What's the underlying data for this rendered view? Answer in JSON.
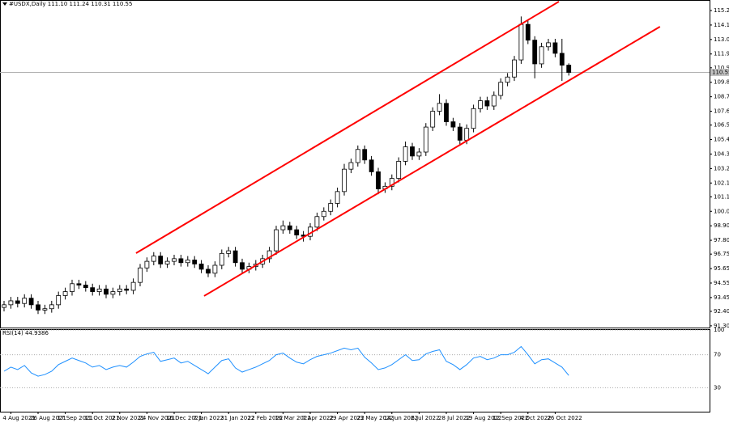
{
  "chart_data": [
    {
      "type": "candlestick",
      "title": "#USDX,Daily 111.10 111.24 110.31 110.55",
      "categories": [
        null,
        "4 Aug 2021",
        null,
        null,
        null,
        "26 Aug 2021",
        null,
        null,
        null,
        "17 Sep 2021",
        null,
        null,
        null,
        "11 Oct 2021",
        null,
        null,
        null,
        "2 Nov 2021",
        null,
        null,
        null,
        "24 Nov 2021",
        null,
        null,
        null,
        "16 Dec 2021",
        null,
        null,
        null,
        "7 Jan 2022",
        null,
        null,
        null,
        "31 Jan 2022",
        null,
        null,
        null,
        "22 Feb 2022",
        null,
        null,
        null,
        "16 Mar 2022",
        null,
        null,
        null,
        "7 Apr 2022",
        null,
        null,
        null,
        "29 Apr 2022",
        null,
        null,
        null,
        "23 May 2022",
        null,
        null,
        null,
        "14 Jun 2022",
        null,
        null,
        null,
        "6 Jul 2022",
        null,
        null,
        null,
        "28 Jul 2022",
        null,
        null,
        null,
        "19 Aug 2022",
        null,
        null,
        null,
        "12 Sep 2022",
        null,
        null,
        null,
        "4 Oct 2022",
        null,
        null,
        null,
        "26 Oct 2022",
        null,
        null
      ],
      "open": [
        92.7,
        92.9,
        93.2,
        93.0,
        93.4,
        92.9,
        92.5,
        92.6,
        92.9,
        93.6,
        93.9,
        94.5,
        94.4,
        94.2,
        93.9,
        94.1,
        93.7,
        93.9,
        94.1,
        94.0,
        94.6,
        95.7,
        96.2,
        96.6,
        96.0,
        96.2,
        96.4,
        96.1,
        96.3,
        96.0,
        95.6,
        95.3,
        95.9,
        96.8,
        97.0,
        96.1,
        95.6,
        95.8,
        96.0,
        96.4,
        97.0,
        98.6,
        98.9,
        98.6,
        98.2,
        98.1,
        98.8,
        99.6,
        100.0,
        100.6,
        101.5,
        103.2,
        103.7,
        104.7,
        103.9,
        103.0,
        101.7,
        101.9,
        102.5,
        103.8,
        104.9,
        104.2,
        104.5,
        106.4,
        107.6,
        108.2,
        106.8,
        106.4,
        105.4,
        106.3,
        107.8,
        108.4,
        108.0,
        108.8,
        109.8,
        110.2,
        111.5,
        114.2,
        113.0,
        111.2,
        112.5,
        112.8,
        112.0,
        111.1
      ],
      "high": [
        93.2,
        93.5,
        93.5,
        93.7,
        93.7,
        93.2,
        92.9,
        93.2,
        93.9,
        94.2,
        94.8,
        94.8,
        94.7,
        94.5,
        94.4,
        94.4,
        94.2,
        94.4,
        94.4,
        94.9,
        96.0,
        96.5,
        96.9,
        96.9,
        96.5,
        96.7,
        96.7,
        96.6,
        96.6,
        96.3,
        95.9,
        96.2,
        97.1,
        97.3,
        97.3,
        96.4,
        96.1,
        96.3,
        96.7,
        97.3,
        98.9,
        99.3,
        99.2,
        98.9,
        98.5,
        99.1,
        99.9,
        100.3,
        100.9,
        101.8,
        103.6,
        104.0,
        105.0,
        105.0,
        104.2,
        103.3,
        102.2,
        102.8,
        104.1,
        105.3,
        105.2,
        104.8,
        106.7,
        107.9,
        108.9,
        108.5,
        107.1,
        106.7,
        106.6,
        108.1,
        108.7,
        108.7,
        109.1,
        110.1,
        110.5,
        111.8,
        114.8,
        114.5,
        113.3,
        112.8,
        113.1,
        113.1,
        113.1,
        111.24
      ],
      "low": [
        92.4,
        92.6,
        92.7,
        92.7,
        92.6,
        92.2,
        92.2,
        92.3,
        92.6,
        93.3,
        93.6,
        94.1,
        93.9,
        93.6,
        93.6,
        93.4,
        93.4,
        93.6,
        93.7,
        93.7,
        94.3,
        95.4,
        95.9,
        95.7,
        95.7,
        95.9,
        95.8,
        95.8,
        95.7,
        95.3,
        95.0,
        95.0,
        95.6,
        96.5,
        95.8,
        95.3,
        95.3,
        95.5,
        95.7,
        96.1,
        96.7,
        98.3,
        98.3,
        97.9,
        97.7,
        97.8,
        98.5,
        99.3,
        99.7,
        100.3,
        101.2,
        102.9,
        103.4,
        103.6,
        102.7,
        101.3,
        101.4,
        101.6,
        102.2,
        103.5,
        103.9,
        103.9,
        104.2,
        106.1,
        107.3,
        106.5,
        106.1,
        105.0,
        105.1,
        106.0,
        107.5,
        107.7,
        107.7,
        108.5,
        109.5,
        109.9,
        111.2,
        112.7,
        110.1,
        110.9,
        112.2,
        111.7,
        109.9,
        110.31
      ],
      "close": [
        92.9,
        93.2,
        93.0,
        93.4,
        92.9,
        92.5,
        92.6,
        92.9,
        93.6,
        93.9,
        94.5,
        94.4,
        94.2,
        93.9,
        94.1,
        93.7,
        93.9,
        94.1,
        94.0,
        94.6,
        95.7,
        96.2,
        96.6,
        96.0,
        96.2,
        96.4,
        96.1,
        96.3,
        96.0,
        95.6,
        95.3,
        95.9,
        96.8,
        97.0,
        96.1,
        95.6,
        95.8,
        96.0,
        96.4,
        97.0,
        98.6,
        98.9,
        98.6,
        98.2,
        98.1,
        98.8,
        99.6,
        100.0,
        100.6,
        101.5,
        103.2,
        103.7,
        104.7,
        103.9,
        103.0,
        101.7,
        101.9,
        102.5,
        103.8,
        104.9,
        104.2,
        104.5,
        106.4,
        107.6,
        108.2,
        106.8,
        106.4,
        105.4,
        106.3,
        107.8,
        108.4,
        108.0,
        108.8,
        109.8,
        110.2,
        111.5,
        114.2,
        113.0,
        111.2,
        112.5,
        112.8,
        112.0,
        111.1,
        110.55
      ],
      "ylim": [
        91.17,
        116.05
      ],
      "yticks": [
        115.25,
        114.15,
        113.05,
        111.95,
        {
          "value": 110.9,
          "label": "110.90"
        },
        {
          "value": 109.8,
          "label": "109.80"
        },
        {
          "value": 108.7,
          "label": "108.70"
        },
        {
          "value": 107.6,
          "label": "107.60"
        },
        106.55,
        105.45,
        104.35,
        103.25,
        102.15,
        {
          "value": 101.1,
          "label": "101.10"
        },
        {
          "value": 100,
          "label": "100.00"
        },
        {
          "value": 98.9,
          "label": "98.90"
        },
        {
          "value": 97.8,
          "label": "97.80"
        },
        96.75,
        95.65,
        94.55,
        93.45,
        {
          "value": 92.4,
          "label": "92.40"
        },
        {
          "value": 91.3,
          "label": "91.30"
        }
      ],
      "last_price": 110.55,
      "channel_lines": [
        {
          "color": "#ff0000",
          "x": [
            19.4,
            81.55
          ],
          "y": [
            96.82,
            115.93
          ]
        },
        {
          "color": "#ff0000",
          "x": [
            29.4,
            96.4
          ],
          "y": [
            93.57,
            114.02
          ]
        }
      ]
    },
    {
      "type": "line",
      "title": "RSI(14) 44.9386",
      "color": "#1e90ff",
      "values": [
        50,
        55,
        52,
        57,
        48,
        44,
        46,
        50,
        58,
        62,
        66,
        63,
        60,
        55,
        57,
        52,
        55,
        57,
        55,
        61,
        68,
        71,
        73,
        62,
        64,
        66,
        60,
        62,
        57,
        52,
        47,
        55,
        63,
        65,
        54,
        49,
        52,
        55,
        59,
        63,
        70,
        72,
        66,
        61,
        59,
        64,
        68,
        70,
        72,
        75,
        78,
        76,
        78,
        67,
        60,
        52,
        54,
        58,
        64,
        70,
        63,
        64,
        71,
        74,
        76,
        62,
        58,
        52,
        58,
        66,
        68,
        64,
        66,
        70,
        70,
        73,
        80,
        70,
        59,
        64,
        65,
        60,
        55,
        44.9386
      ],
      "ylim": [
        0,
        100
      ],
      "yticks": [
        100,
        70,
        30
      ],
      "grid": true
    }
  ]
}
